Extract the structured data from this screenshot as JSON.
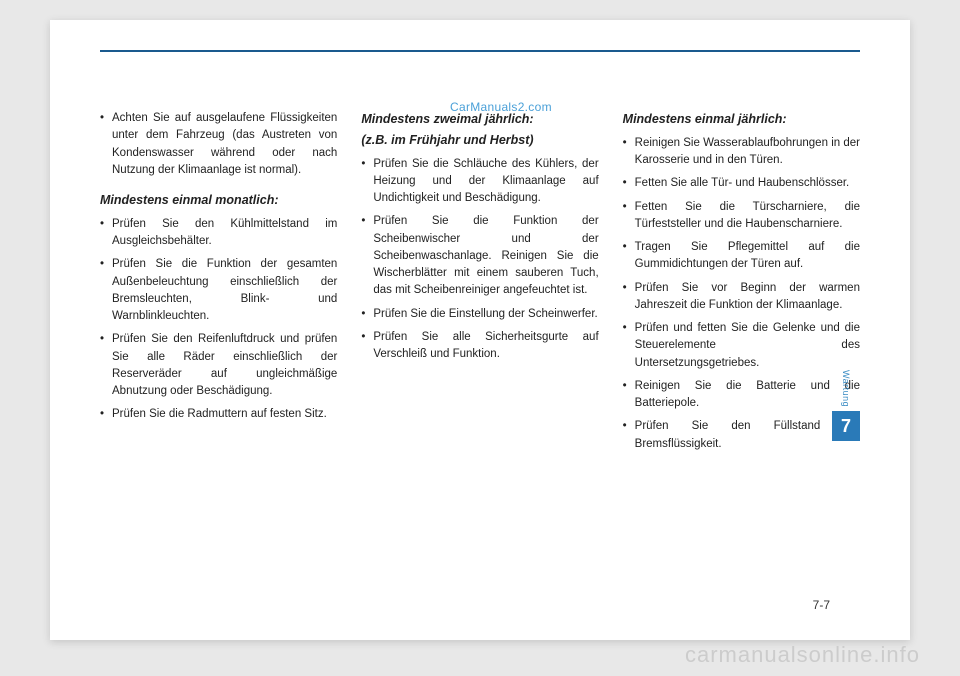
{
  "watermark_top": "CarManuals2.com",
  "watermark_bottom": "carmanualsonline.info",
  "page_number": "7-7",
  "side_tab": {
    "label": "Wartung",
    "number": "7"
  },
  "colors": {
    "header_line": "#1a5a8e",
    "tab_bg": "#2a7ab8",
    "tab_text": "#ffffff",
    "side_label": "#3a8cc4",
    "watermark_top": "#4aa0d8",
    "watermark_bottom": "#cccccc",
    "body_text": "#222222",
    "page_bg": "#ffffff",
    "outer_bg": "#e8e8e8"
  },
  "col1": {
    "lead_bullet": "Achten Sie auf ausgelaufene Flüssigkeiten unter dem Fahrzeug (das Austreten von Kondenswasser während oder nach Nutzung der Klimaanlage ist normal).",
    "heading": "Mindestens einmal monatlich:",
    "items": [
      "Prüfen Sie den Kühlmittelstand im Ausgleichsbehälter.",
      "Prüfen Sie die Funktion der gesamten Außenbeleuchtung einschließlich der Bremsleuchten, Blink- und Warnblinkleuchten.",
      "Prüfen Sie den Reifenluftdruck und prüfen Sie alle Räder einschließlich der Reserveräder auf ungleichmäßige Abnutzung oder Beschädigung.",
      "Prüfen Sie die Radmuttern auf festen Sitz."
    ]
  },
  "col2": {
    "heading1": "Mindestens zweimal jährlich:",
    "heading2": "(z.B. im Frühjahr und Herbst)",
    "items": [
      "Prüfen Sie die Schläuche des Kühlers, der Heizung und der Klimaanlage auf Undichtigkeit und Beschädigung.",
      "Prüfen Sie die Funktion der Scheibenwischer und der Scheibenwaschanlage. Reinigen Sie die Wischerblätter mit einem sauberen Tuch, das mit Scheibenreiniger angefeuchtet ist.",
      "Prüfen Sie die Einstellung der Scheinwerfer.",
      "Prüfen Sie alle Sicherheitsgurte auf Verschleiß und Funktion."
    ]
  },
  "col3": {
    "heading": "Mindestens einmal jährlich:",
    "items": [
      "Reinigen Sie Wasserablaufbohrungen in der Karosserie und in den Türen.",
      "Fetten Sie alle Tür- und Haubenschlösser.",
      "Fetten Sie die Türscharniere, die Türfeststeller und die Haubenscharniere.",
      "Tragen Sie Pflegemittel auf die Gummidichtungen der Türen auf.",
      "Prüfen Sie vor Beginn der warmen Jahreszeit die Funktion der Klimaanlage.",
      "Prüfen und fetten Sie die Gelenke und die Steuerelemente des Untersetzungsgetriebes.",
      "Reinigen Sie die Batterie und die Batteriepole.",
      "Prüfen Sie den Füllstand der Bremsflüssigkeit."
    ]
  }
}
